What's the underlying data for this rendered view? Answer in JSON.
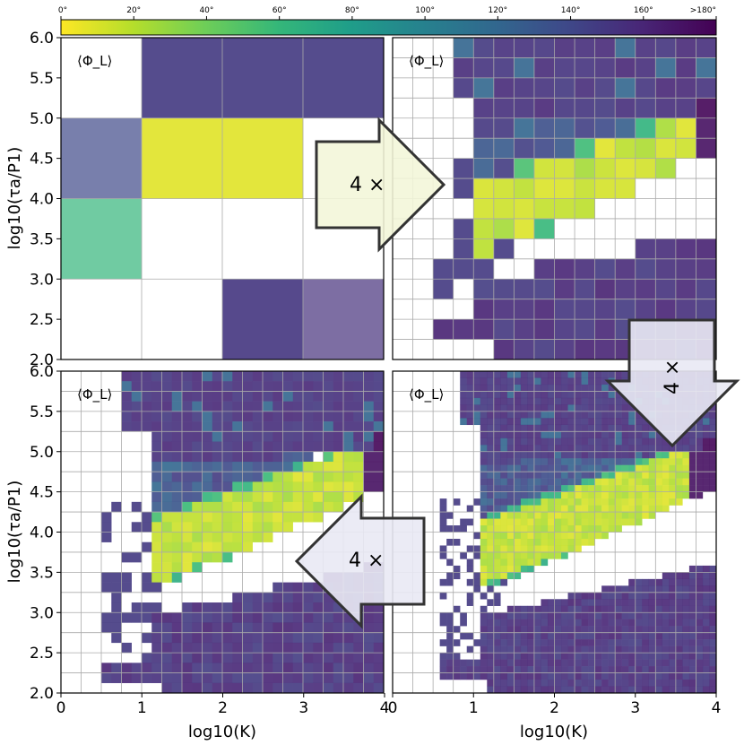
{
  "colorbar": {
    "ticks": [
      "0°",
      "20°",
      "40°",
      "60°",
      "80°",
      "100°",
      "120°",
      "140°",
      "160°",
      ">180°"
    ],
    "colors": [
      "#fde725",
      "#b5de2b",
      "#6ece58",
      "#35b779",
      "#1f9e89",
      "#26828e",
      "#31688e",
      "#3e4989",
      "#482878",
      "#440154"
    ]
  },
  "arrows": [
    {
      "label": "4 ×",
      "direction": "right"
    },
    {
      "label": "4 ×",
      "direction": "down"
    },
    {
      "label": "4 ×",
      "direction": "left"
    }
  ],
  "chart_data": [
    {
      "type": "heatmap",
      "panel": "top-left",
      "title": "⟨Φ_L⟩",
      "grid": "4x4",
      "xlabel": "",
      "ylabel": "log10(τa/P1)",
      "xlim": [
        0,
        4
      ],
      "ylim": [
        2.0,
        6.0
      ],
      "xticks": [],
      "yticks": [
        "2.0",
        "2.5",
        "3.0",
        "3.5",
        "4.0",
        "4.5",
        "5.0",
        "5.5",
        "6.0"
      ]
    },
    {
      "type": "heatmap",
      "panel": "top-right",
      "title": "⟨Φ_L⟩",
      "grid": "16x16",
      "xlabel": "",
      "ylabel": "",
      "xlim": [
        0,
        4
      ],
      "ylim": [
        2.0,
        6.0
      ],
      "xticks": [],
      "yticks": []
    },
    {
      "type": "heatmap",
      "panel": "bottom-left",
      "title": "⟨Φ_L⟩",
      "grid": "64x64",
      "xlabel": "log10(K)",
      "ylabel": "log10(τa/P1)",
      "xlim": [
        0,
        4
      ],
      "ylim": [
        2.0,
        6.0
      ],
      "xticks": [
        "0",
        "1",
        "2",
        "3",
        "4"
      ],
      "yticks": [
        "2.0",
        "2.5",
        "3.0",
        "3.5",
        "4.0",
        "4.5",
        "5.0",
        "5.5",
        "6.0"
      ]
    },
    {
      "type": "heatmap",
      "panel": "bottom-right",
      "title": "⟨Φ_L⟩",
      "grid": "256x256",
      "xlabel": "log10(K)",
      "ylabel": "",
      "xlim": [
        0,
        4
      ],
      "ylim": [
        2.0,
        6.0
      ],
      "xticks": [
        "0",
        "1",
        "2",
        "3",
        "4"
      ],
      "yticks": []
    }
  ]
}
